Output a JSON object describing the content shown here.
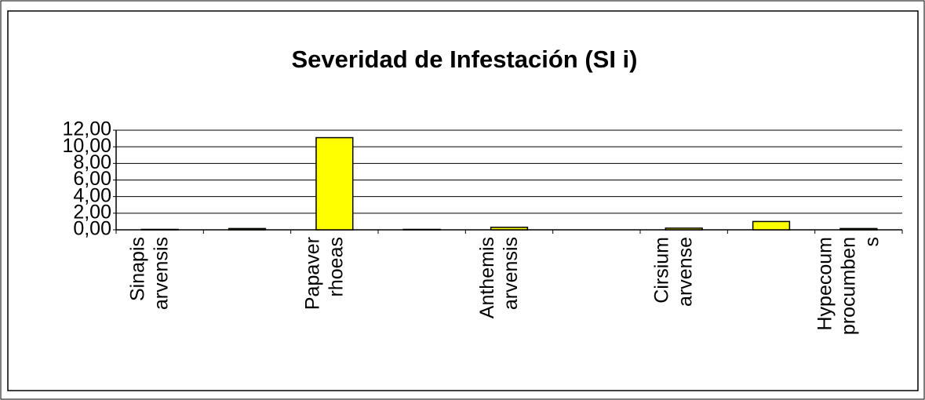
{
  "chart_data": {
    "type": "bar",
    "title": "Severidad de Infestación (SI i)",
    "categories": [
      "Sinapis arvensis",
      null,
      "Papaver rhoeas",
      null,
      "Anthemis arvensis",
      null,
      "Cirsium arvense",
      null,
      "Hypecoum procumbens"
    ],
    "values": [
      0.05,
      0.15,
      11.1,
      0.05,
      0.3,
      0,
      0.2,
      1.0,
      0.15
    ],
    "color": "#ffff00",
    "ylim": [
      0,
      12
    ],
    "yticks": [
      {
        "value": 0,
        "label": "0,00"
      },
      {
        "value": 2,
        "label": "2,00"
      },
      {
        "value": 4,
        "label": "4,00"
      },
      {
        "value": 6,
        "label": "6,00"
      },
      {
        "value": 8,
        "label": "8,00"
      },
      {
        "value": 10,
        "label": "10,00"
      },
      {
        "value": 12,
        "label": "12,00"
      }
    ],
    "grid": true
  }
}
